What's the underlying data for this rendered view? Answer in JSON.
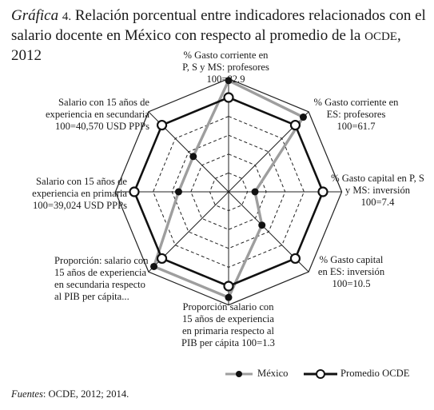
{
  "title": {
    "lead": "Gráfica",
    "number": "4.",
    "text1": "Relación porcentual entre indicadores relacionados con el salario docente en México con respecto al promedio de la",
    "org": "OCDE",
    "year": ", 2012"
  },
  "chart_data": {
    "type": "radar",
    "axes": [
      "% Gasto corriente en P, S y MS: profesores 100=82.9",
      "% Gasto corriente en ES: profesores 100=61.7",
      "% Gasto capital en P, S y MS: inversión 100=7.4",
      "% Gasto capital en ES: inversión 100=10.5",
      "Proporción salario con 15 años de experiencia en primaria respecto al PIB per cápita 100=1.3",
      "Proporción: salario con 15 años de experiencia en secundaria respecto al PIB per cápita...",
      "Salario con 15 años de experiencia en primaria 100=39,024 USD PPPs",
      "Salario con 15 años de experiencia en secundaria 100=40,570 USD PPPs"
    ],
    "series": [
      {
        "name": "México",
        "color": "#9e9e9e",
        "values": [
          118,
          112,
          28,
          50,
          112,
          112,
          53,
          53
        ]
      },
      {
        "name": "Promedio OCDE",
        "color": "#111111",
        "values": [
          100,
          100,
          100,
          100,
          100,
          100,
          100,
          100
        ]
      }
    ],
    "rmax": 120,
    "ring_count": 6,
    "grid": true,
    "legend_position": "bottom-right"
  },
  "labels": {
    "axis0": [
      "% Gasto corriente en",
      "P, S y MS: profesores",
      "100=82.9"
    ],
    "axis1": [
      "% Gasto corriente en",
      "ES: profesores",
      "100=61.7"
    ],
    "axis2": [
      "% Gasto capital en P, S",
      "y MS: inversión",
      "100=7.4"
    ],
    "axis3": [
      "% Gasto capital",
      "en ES: inversión",
      "100=10.5"
    ],
    "axis4": [
      "Proporción salario con",
      "15 años de experiencia",
      "en primaria respecto al",
      "PIB per cápita 100=1.3"
    ],
    "axis5": [
      "Proporción: salario con",
      "15 años de experiencia",
      "en secundaria respecto",
      "al PIB per cápita..."
    ],
    "axis6": [
      "Salario con 15 años de",
      "experiencia en primaria",
      "100=39,024 USD PPPs"
    ],
    "axis7": [
      "Salario con 15 años de",
      "experiencia en secundaria",
      "100=40,570 USD PPPs"
    ]
  },
  "legend": {
    "mexico": "México",
    "ocde": "Promedio OCDE"
  },
  "footer": {
    "label": "Fuentes",
    "text": ": OCDE, 2012; 2014."
  }
}
